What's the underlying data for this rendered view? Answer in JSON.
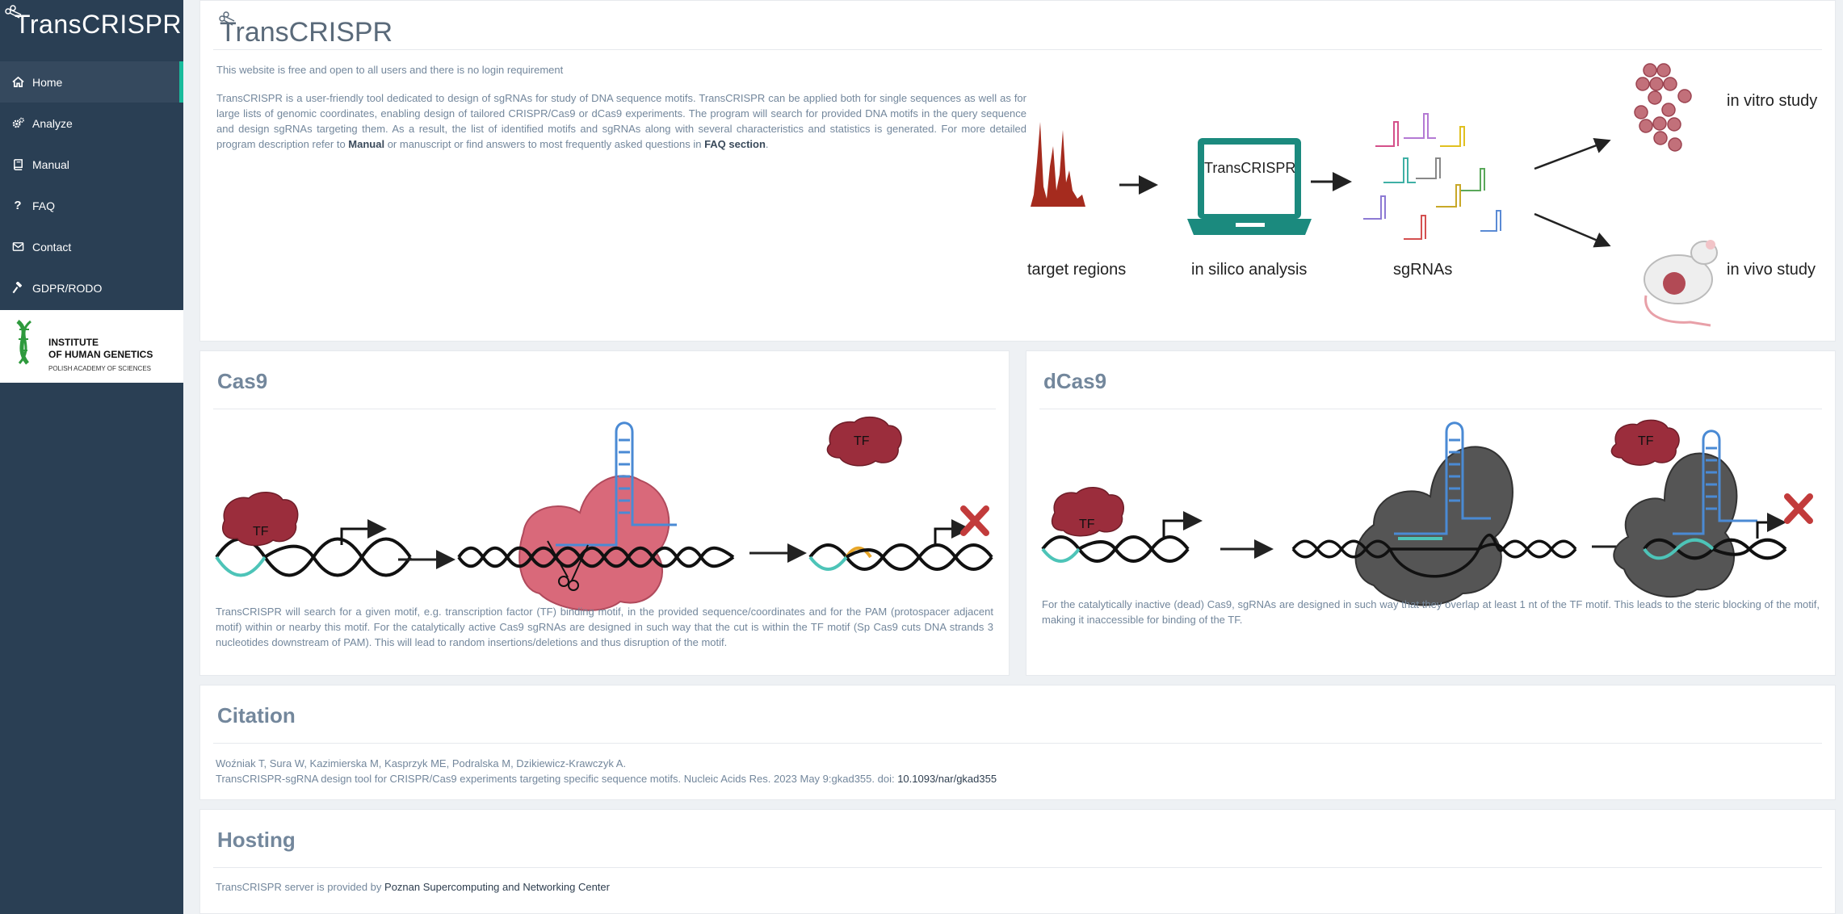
{
  "sidebar": {
    "brand": "TransCRISPR",
    "items": [
      {
        "label": "Home",
        "icon": "home-icon",
        "active": true
      },
      {
        "label": "Analyze",
        "icon": "cogs-icon",
        "active": false
      },
      {
        "label": "Manual",
        "icon": "book-icon",
        "active": false
      },
      {
        "label": "FAQ",
        "icon": "question-icon",
        "active": false
      },
      {
        "label": "Contact",
        "icon": "envelope-icon",
        "active": false
      },
      {
        "label": "GDPR/RODO",
        "icon": "gavel-icon",
        "active": false
      }
    ],
    "institute": {
      "line1": "INSTITUTE",
      "line2": "OF HUMAN GENETICS",
      "line3": "POLISH ACADEMY OF SCIENCES"
    }
  },
  "hero": {
    "title": "TransCRISPR",
    "free_notice": "This website is free and open to all users and there is no login requirement",
    "desc_before_manual": "TransCRISPR is a user-friendly tool dedicated to design of sgRNAs for study of DNA sequence motifs. TransCRISPR can be applied both for single sequences as well as for large lists of genomic coordinates, enabling design of tailored CRISPR/Cas9 or dCas9 experiments. The program will search for provided DNA motifs in the query sequence and design sgRNAs targeting them. As a result, the list of identified motifs and sgRNAs along with several characteristics and statistics is generated. For more detailed program description refer to ",
    "manual_link": "Manual",
    "desc_middle": " or manuscript or find answers to most frequently asked questions in ",
    "faq_link": "FAQ section",
    "desc_end": ".",
    "diagram": {
      "target": "target regions",
      "silico": "in silico analysis",
      "laptop_text": "TransCRISPR",
      "sgrnas": "sgRNAs",
      "vitro": "in vitro study",
      "vivo": "in vivo study"
    }
  },
  "cas9": {
    "title": "Cas9",
    "tf_label": "TF",
    "text": "TransCRISPR will search for a given motif, e.g. transcription factor (TF) binding motif, in the provided sequence/coordinates and for the PAM (protospacer adjacent motif) within or nearby this motif. For the catalytically active Cas9 sgRNAs are designed in such way that the cut is within the TF motif (Sp Cas9 cuts DNA strands 3 nucleotides downstream of PAM). This will lead to random insertions/deletions and thus disruption of the motif."
  },
  "dcas9": {
    "title": "dCas9",
    "tf_label": "TF",
    "text": "For the catalytically inactive (dead) Cas9, sgRNAs are designed in such way that they overlap at least 1 nt of the TF motif. This leads to the steric blocking of the motif, making it inaccessible for binding of the TF."
  },
  "citation": {
    "title": "Citation",
    "authors": "Woźniak T, Sura W, Kazimierska M, Kasprzyk ME, Podralska M, Dzikiewicz-Krawczyk A.",
    "ref": "TransCRISPR-sgRNA design tool for CRISPR/Cas9 experiments targeting specific sequence motifs. Nucleic Acids Res. 2023 May 9:gkad355. doi: ",
    "doi": "10.1093/nar/gkad355"
  },
  "hosting": {
    "title": "Hosting",
    "text": "TransCRISPR server is provided by ",
    "link": "Poznan Supercomputing and Networking Center"
  },
  "colors": {
    "sidebar_bg": "#2a3f54",
    "active_item_bg": "#35495e",
    "accent": "#1abb9c",
    "text": "#73879c",
    "laptop": "#1b8a7e",
    "tf": "#9b2d3c",
    "cas9_pink": "#d9697a",
    "dcas9_gray": "#555555"
  }
}
